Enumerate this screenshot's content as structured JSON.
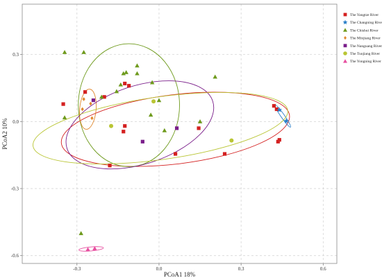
{
  "chart_data": {
    "type": "scatter",
    "title": "",
    "xlabel": "PCoA1 18%",
    "ylabel": "PCoA2 10%",
    "xlim": [
      -0.5,
      0.65
    ],
    "ylim": [
      -0.635,
      0.525
    ],
    "xticks": [
      -0.3,
      0.0,
      0.3,
      0.6
    ],
    "xtick_labels": [
      "-0.3",
      "0.0",
      "0.3",
      "0.6"
    ],
    "yticks": [
      -0.6,
      -0.3,
      0.0,
      0.3
    ],
    "ytick_labels": [
      "-0.6",
      "-0.3",
      "0.0",
      "0.3"
    ],
    "grid": "dashed",
    "legend_position": "top-right",
    "series": [
      {
        "name": "The Yangtze River",
        "marker": "square",
        "color": "#d42020",
        "points": [
          [
            -0.35,
            0.078
          ],
          [
            -0.27,
            0.132
          ],
          [
            -0.2,
            0.11
          ],
          [
            -0.125,
            0.17
          ],
          [
            -0.11,
            0.16
          ],
          [
            -0.125,
            -0.02
          ],
          [
            -0.13,
            -0.045
          ],
          [
            -0.18,
            -0.197
          ],
          [
            0.06,
            -0.145
          ],
          [
            0.145,
            -0.03
          ],
          [
            0.24,
            -0.145
          ],
          [
            0.42,
            0.07
          ],
          [
            0.43,
            0.055
          ],
          [
            0.435,
            -0.09
          ],
          [
            0.44,
            -0.082
          ]
        ],
        "ellipse": {
          "cx": 0.06,
          "cy": -0.035,
          "rx": 0.42,
          "ry": 0.155,
          "angle": -7
        }
      },
      {
        "name": "The Changning River",
        "marker": "star",
        "color": "#2a7fc8",
        "points": [
          [
            0.44,
            0.052
          ],
          [
            0.465,
            0.002
          ]
        ],
        "ellipse": {
          "cx": 0.452,
          "cy": 0.025,
          "rx": 0.05,
          "ry": 0.008,
          "angle": 55
        }
      },
      {
        "name": "The Chishui River",
        "marker": "triangle",
        "color": "#6e9a1c",
        "points": [
          [
            -0.345,
            0.31
          ],
          [
            -0.275,
            0.31
          ],
          [
            -0.21,
            0.11
          ],
          [
            -0.155,
            0.135
          ],
          [
            -0.14,
            0.165
          ],
          [
            -0.13,
            0.215
          ],
          [
            -0.12,
            0.22
          ],
          [
            -0.08,
            0.215
          ],
          [
            -0.08,
            0.25
          ],
          [
            -0.025,
            0.175
          ],
          [
            0.0,
            0.095
          ],
          [
            -0.03,
            0.03
          ],
          [
            0.02,
            -0.04
          ],
          [
            0.15,
            0.0
          ],
          [
            0.205,
            0.2
          ],
          [
            -0.345,
            0.018
          ],
          [
            -0.285,
            -0.5
          ]
        ],
        "ellipse": {
          "cx": -0.11,
          "cy": 0.073,
          "rx": 0.185,
          "ry": 0.275,
          "angle": 0
        }
      },
      {
        "name": "The Minjiang River",
        "marker": "diamond",
        "color": "#e0882e",
        "points": [
          [
            -0.28,
            0.055
          ],
          [
            -0.25,
            0.08
          ],
          [
            -0.245,
            0.015
          ],
          [
            -0.275,
            0.1
          ]
        ],
        "ellipse": {
          "cx": -0.26,
          "cy": 0.055,
          "rx": 0.03,
          "ry": 0.09,
          "angle": 5
        }
      },
      {
        "name": "The Nanguang River",
        "marker": "square",
        "color": "#7a1e8a",
        "points": [
          [
            -0.24,
            0.095
          ],
          [
            -0.06,
            -0.09
          ],
          [
            0.065,
            -0.03
          ]
        ],
        "ellipse": {
          "cx": -0.07,
          "cy": -0.015,
          "rx": 0.28,
          "ry": 0.175,
          "angle": -18
        }
      },
      {
        "name": "The Tuojiang River",
        "marker": "circle",
        "color": "#b9c534",
        "points": [
          [
            -0.175,
            -0.02
          ],
          [
            -0.02,
            0.09
          ],
          [
            0.265,
            -0.085
          ]
        ],
        "ellipse": {
          "cx": 0.005,
          "cy": -0.03,
          "rx": 0.47,
          "ry": 0.14,
          "angle": -8
        }
      },
      {
        "name": "The Yongning River",
        "marker": "triangle",
        "color": "#e74fa0",
        "points": [
          [
            -0.26,
            -0.572
          ],
          [
            -0.235,
            -0.568
          ]
        ],
        "ellipse": {
          "cx": -0.248,
          "cy": -0.57,
          "rx": 0.045,
          "ry": 0.009,
          "angle": -5
        }
      }
    ]
  }
}
